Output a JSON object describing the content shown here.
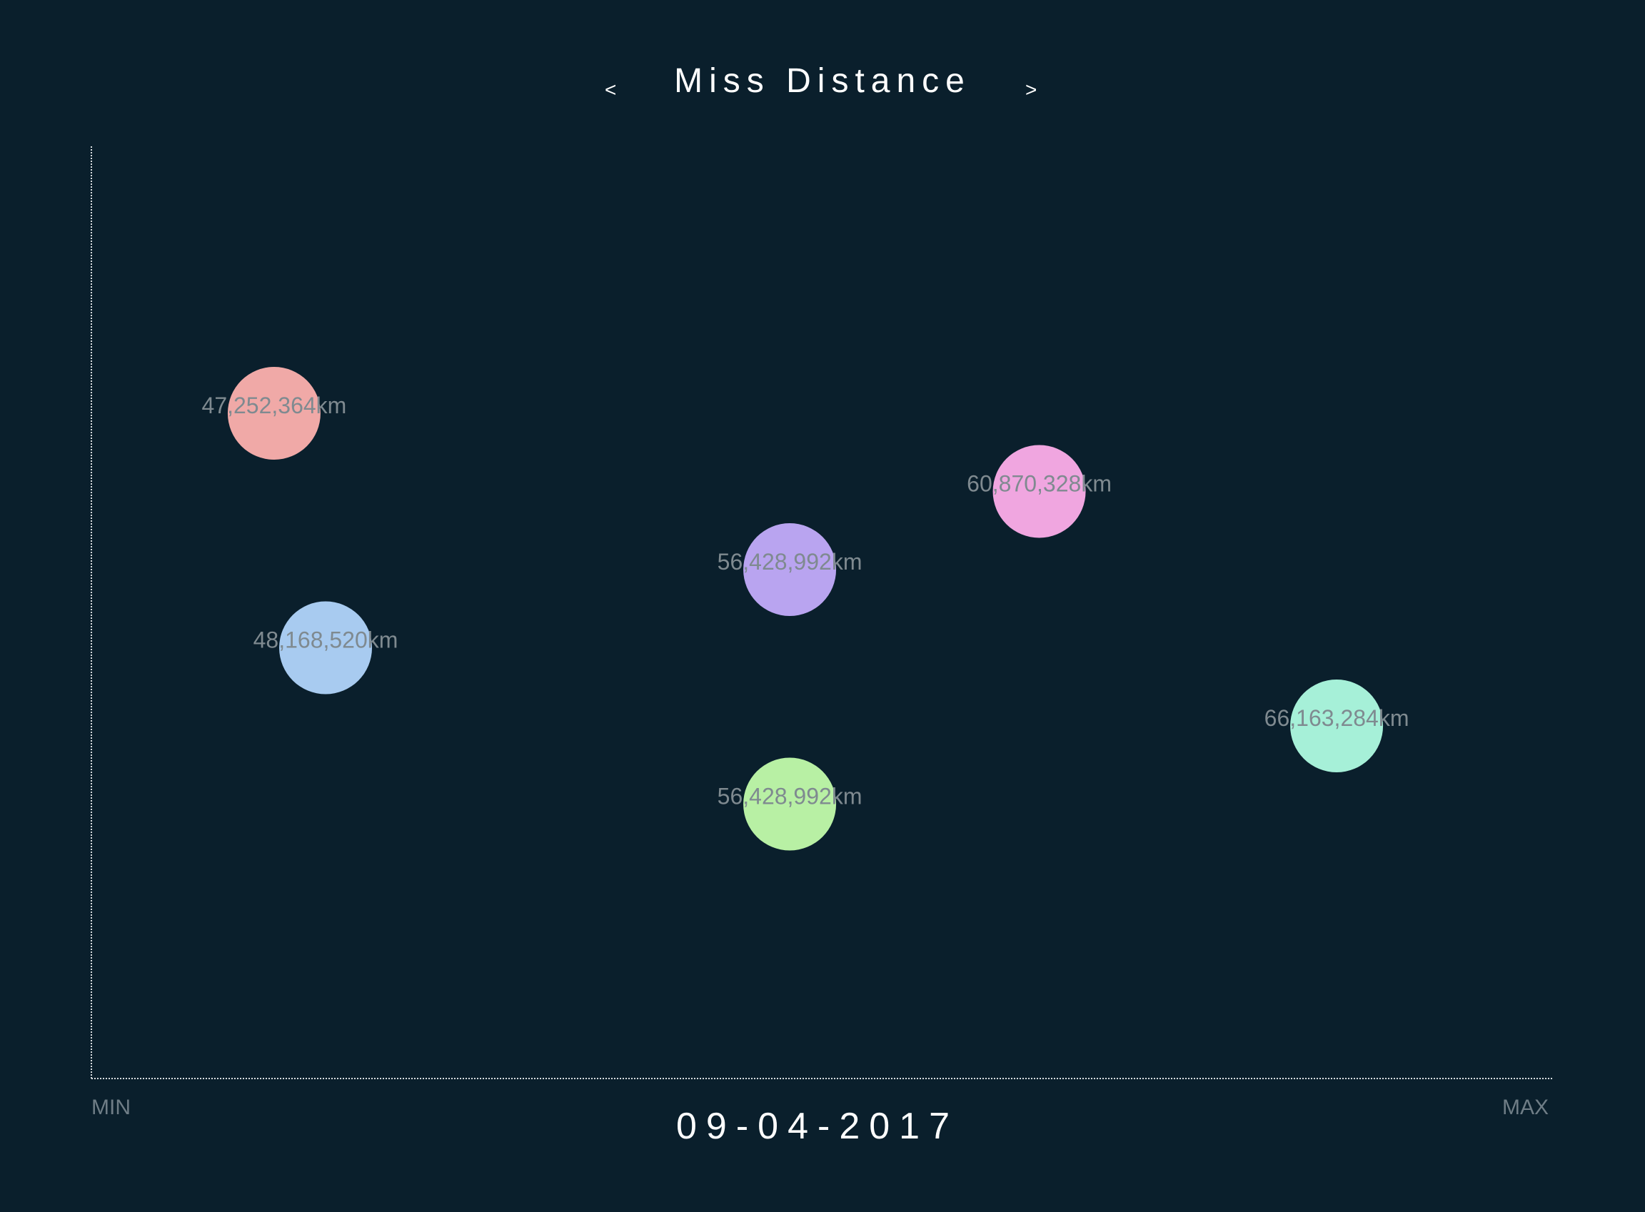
{
  "header": {
    "title": "Miss Distance",
    "prev_label": "<",
    "next_label": ">"
  },
  "footer": {
    "date": "09-04-2017",
    "min_label": "MIN",
    "max_label": "MAX"
  },
  "colors": {
    "background": "#0a1f2c",
    "axis": "#d8dde0",
    "label": "#7f8a90",
    "title": "#ffffff"
  },
  "chart_data": {
    "type": "scatter",
    "title": "Miss Distance",
    "xlabel": "",
    "ylabel": "",
    "x_axis_ends": [
      "MIN",
      "MAX"
    ],
    "x_range_km": [
      44000000,
      70000000
    ],
    "grid": false,
    "points": [
      {
        "label": "47,252,364km",
        "miss_distance_km": 47252364,
        "row": 1,
        "color": "#f0a9a7"
      },
      {
        "label": "48,168,520km",
        "miss_distance_km": 48168520,
        "row": 4,
        "color": "#a8cbf0"
      },
      {
        "label": "56,428,992km",
        "miss_distance_km": 56428992,
        "row": 3,
        "color": "#b9a4f0"
      },
      {
        "label": "56,428,992km",
        "miss_distance_km": 56428992,
        "row": 6,
        "color": "#b8f0a4"
      },
      {
        "label": "60,870,328km",
        "miss_distance_km": 60870328,
        "row": 2,
        "color": "#f0a6e0"
      },
      {
        "label": "66,163,284km",
        "miss_distance_km": 66163284,
        "row": 5,
        "color": "#a6f0d8"
      }
    ]
  }
}
